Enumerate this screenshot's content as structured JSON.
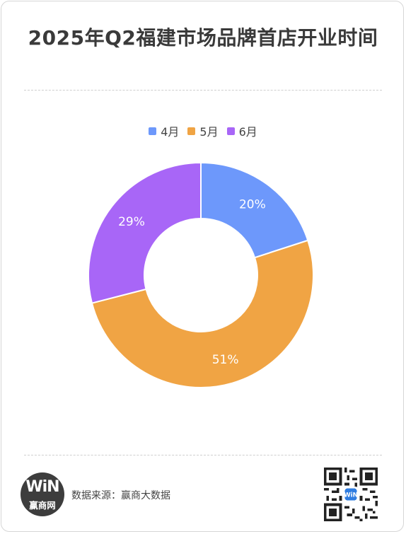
{
  "title": "2025年Q2福建市场品牌首店开业时间",
  "legend": [
    {
      "label": "4月",
      "color": "#6d98fb"
    },
    {
      "label": "5月",
      "color": "#f0a444"
    },
    {
      "label": "6月",
      "color": "#a866f7"
    }
  ],
  "chart_data": {
    "type": "pie",
    "variant": "donut",
    "title": "2025年Q2福建市场品牌首店开业时间",
    "categories": [
      "4月",
      "5月",
      "6月"
    ],
    "values": [
      20,
      51,
      29
    ],
    "labels": [
      "20%",
      "51%",
      "29%"
    ],
    "colors": [
      "#6d98fb",
      "#f0a444",
      "#a866f7"
    ],
    "legend_position": "top"
  },
  "footer": {
    "logo_mark": "WiN",
    "logo_text": "赢商网",
    "source": "数据来源：赢商大数据",
    "qr_icon": "qr-code-icon"
  }
}
